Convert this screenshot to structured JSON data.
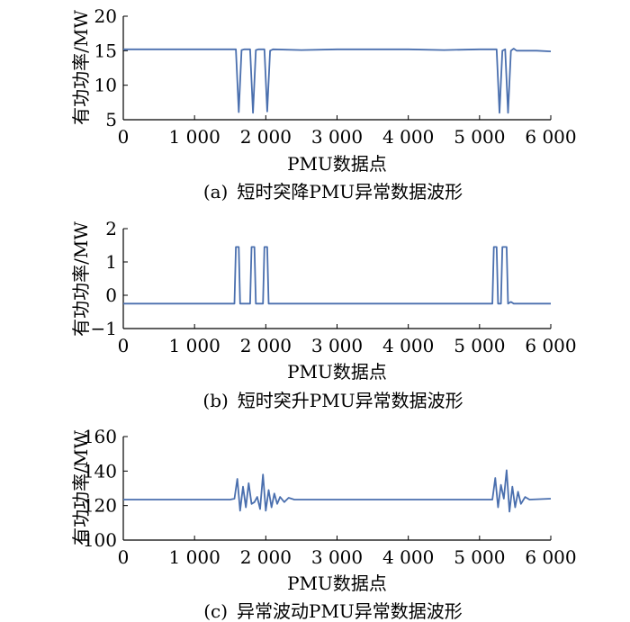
{
  "chart_data": [
    {
      "type": "line",
      "panel_label": "(a)",
      "caption": "短时突降PMU异常数据波形",
      "xlabel": "PMU数据点",
      "ylabel": "有功功率/MW",
      "xlim": [
        0,
        6000
      ],
      "ylim": [
        5,
        20
      ],
      "x_ticks": [
        0,
        1000,
        2000,
        3000,
        4000,
        5000,
        6000
      ],
      "x_tick_labels": [
        "0",
        "1 000",
        "2 000",
        "3 000",
        "4 000",
        "5 000",
        "6 000"
      ],
      "y_ticks": [
        5,
        10,
        15,
        20
      ],
      "y_tick_labels": [
        "5",
        "10",
        "15",
        "20"
      ],
      "line_color": "#4a6fae",
      "x": [
        0,
        500,
        1000,
        1500,
        1540,
        1580,
        1620,
        1660,
        1700,
        1740,
        1780,
        1820,
        1860,
        1900,
        1940,
        1980,
        2020,
        2060,
        2100,
        2500,
        3000,
        3500,
        4000,
        4500,
        5000,
        5200,
        5240,
        5280,
        5320,
        5360,
        5400,
        5440,
        5480,
        5520,
        5600,
        5800,
        6000
      ],
      "y": [
        15.2,
        15.2,
        15.2,
        15.2,
        15.2,
        15.2,
        6.1,
        15.1,
        15.2,
        15.2,
        15.2,
        6.0,
        15.1,
        15.2,
        15.2,
        15.2,
        6.2,
        15.0,
        15.2,
        15.1,
        15.2,
        15.2,
        15.2,
        15.1,
        15.2,
        15.2,
        15.2,
        6.0,
        15.0,
        15.2,
        6.0,
        15.0,
        15.3,
        15.0,
        15.0,
        15.0,
        14.9
      ]
    },
    {
      "type": "line",
      "panel_label": "(b)",
      "caption": "短时突升PMU异常数据波形",
      "xlabel": "PMU数据点",
      "ylabel": "有功功率/MW",
      "xlim": [
        0,
        6000
      ],
      "ylim": [
        -1,
        2
      ],
      "x_ticks": [
        0,
        1000,
        2000,
        3000,
        4000,
        5000,
        6000
      ],
      "x_tick_labels": [
        "0",
        "1 000",
        "2 000",
        "3 000",
        "4 000",
        "5 000",
        "6 000"
      ],
      "y_ticks": [
        -1,
        0,
        1,
        2
      ],
      "y_tick_labels": [
        "−1",
        "0",
        "1",
        "2"
      ],
      "line_color": "#4a6fae",
      "x": [
        0,
        500,
        1000,
        1500,
        1560,
        1580,
        1620,
        1640,
        1780,
        1800,
        1840,
        1860,
        1960,
        1980,
        2020,
        2040,
        2500,
        3000,
        3500,
        4000,
        4500,
        5000,
        5180,
        5200,
        5240,
        5260,
        5300,
        5320,
        5380,
        5400,
        5440,
        5480,
        5600,
        6000
      ],
      "y": [
        -0.25,
        -0.25,
        -0.25,
        -0.25,
        -0.25,
        1.45,
        1.45,
        -0.25,
        -0.25,
        1.45,
        1.45,
        -0.25,
        -0.25,
        1.45,
        1.45,
        -0.25,
        -0.25,
        -0.25,
        -0.25,
        -0.25,
        -0.25,
        -0.25,
        -0.25,
        1.45,
        1.45,
        -0.25,
        -0.25,
        1.45,
        1.45,
        -0.25,
        -0.2,
        -0.25,
        -0.25,
        -0.25
      ]
    },
    {
      "type": "line",
      "panel_label": "(c)",
      "caption": "异常波动PMU异常数据波形",
      "xlabel": "PMU数据点",
      "ylabel": "有功功率/MW",
      "xlim": [
        0,
        6000
      ],
      "ylim": [
        100,
        160
      ],
      "x_ticks": [
        0,
        1000,
        2000,
        3000,
        4000,
        5000,
        6000
      ],
      "x_tick_labels": [
        "0",
        "1 000",
        "2 000",
        "3 000",
        "4 000",
        "5 000",
        "6 000"
      ],
      "y_ticks": [
        100,
        120,
        140,
        160
      ],
      "y_tick_labels": [
        "100",
        "120",
        "140",
        "160"
      ],
      "line_color": "#4a6fae",
      "x": [
        0,
        500,
        1000,
        1500,
        1560,
        1600,
        1640,
        1680,
        1720,
        1760,
        1800,
        1840,
        1880,
        1920,
        1960,
        2000,
        2040,
        2080,
        2120,
        2160,
        2200,
        2260,
        2320,
        2400,
        2600,
        3000,
        3500,
        4000,
        4500,
        5000,
        5180,
        5220,
        5260,
        5300,
        5340,
        5380,
        5420,
        5460,
        5500,
        5540,
        5580,
        5640,
        5700,
        6000
      ],
      "y": [
        123.5,
        123.5,
        123.5,
        123.5,
        124,
        135.5,
        117,
        131,
        119,
        133,
        121,
        122,
        125,
        118,
        138,
        117,
        129,
        119,
        127,
        121,
        125,
        122,
        124.5,
        123.5,
        123.5,
        123.5,
        123.5,
        123.5,
        123.5,
        123.5,
        123.5,
        136,
        119,
        132,
        124,
        140.5,
        116.5,
        131,
        119,
        128,
        121,
        125,
        123.5,
        124
      ]
    }
  ]
}
